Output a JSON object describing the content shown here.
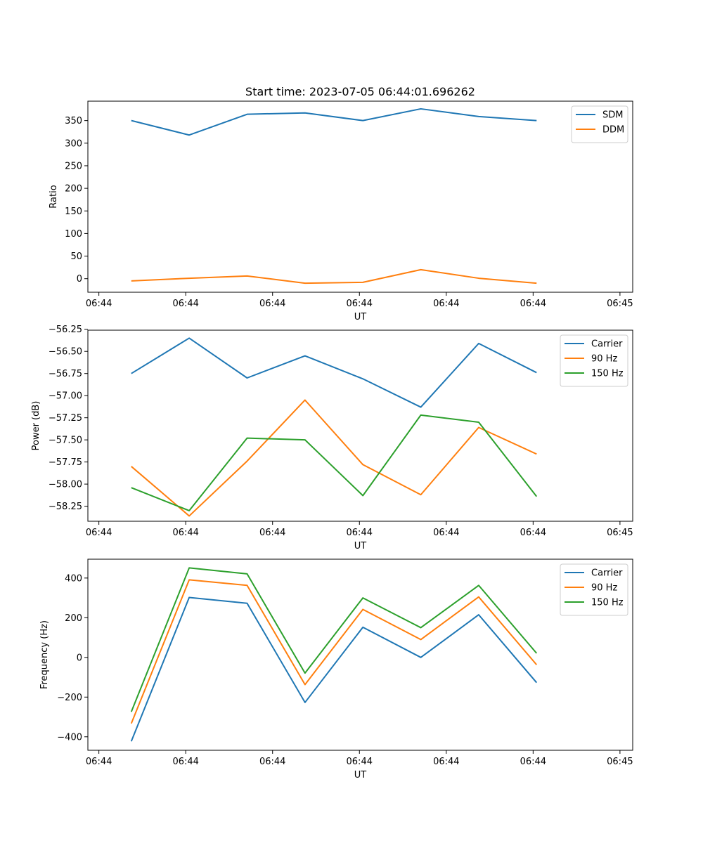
{
  "title": "Start time: 2023-07-05 06:44:01.696262",
  "chart_data": [
    {
      "type": "line",
      "xlabel": "UT",
      "ylabel": "Ratio",
      "x_tick_labels": [
        "06:44",
        "06:44",
        "06:44",
        "06:44",
        "06:44",
        "06:44",
        "06:45"
      ],
      "xlim": [
        -0.19,
        9.22
      ],
      "ylim": [
        -30,
        393
      ],
      "y_ticks": [
        0,
        50,
        100,
        150,
        200,
        250,
        300,
        350
      ],
      "y_tick_labels": [
        "0",
        "50",
        "100",
        "150",
        "200",
        "250",
        "300",
        "350"
      ],
      "legend": "top-right",
      "x": [
        0.56,
        1.56,
        2.56,
        3.56,
        4.56,
        5.56,
        6.56,
        7.56
      ],
      "series": [
        {
          "name": "SDM",
          "color": "#1f77b4",
          "values": [
            350,
            318,
            364,
            367,
            350,
            376,
            359,
            350
          ]
        },
        {
          "name": "DDM",
          "color": "#ff7f0e",
          "values": [
            -5,
            1,
            6,
            -10,
            -8,
            20,
            1,
            -10
          ]
        }
      ]
    },
    {
      "type": "line",
      "xlabel": "UT",
      "ylabel": "Power (dB)",
      "x_tick_labels": [
        "06:44",
        "06:44",
        "06:44",
        "06:44",
        "06:44",
        "06:44",
        "06:45"
      ],
      "xlim": [
        -0.19,
        9.22
      ],
      "ylim": [
        -58.42,
        -56.26
      ],
      "y_ticks": [
        -58.25,
        -58.0,
        -57.75,
        -57.5,
        -57.25,
        -57.0,
        -56.75,
        -56.5,
        -56.25
      ],
      "y_tick_labels": [
        "−58.25",
        "−58.00",
        "−57.75",
        "−57.50",
        "−57.25",
        "−57.00",
        "−56.75",
        "−56.50",
        "−56.25"
      ],
      "legend": "top-right",
      "x": [
        0.56,
        1.56,
        2.56,
        3.56,
        4.56,
        5.56,
        6.56,
        7.56
      ],
      "series": [
        {
          "name": "Carrier",
          "color": "#1f77b4",
          "values": [
            -56.75,
            -56.35,
            -56.8,
            -56.55,
            -56.81,
            -57.13,
            -56.41,
            -56.74
          ]
        },
        {
          "name": "90 Hz",
          "color": "#ff7f0e",
          "values": [
            -57.8,
            -58.36,
            -57.74,
            -57.05,
            -57.78,
            -58.12,
            -57.36,
            -57.66
          ]
        },
        {
          "name": "150 Hz",
          "color": "#2ca02c",
          "values": [
            -58.04,
            -58.3,
            -57.48,
            -57.5,
            -58.13,
            -57.22,
            -57.3,
            -58.14
          ]
        }
      ]
    },
    {
      "type": "line",
      "xlabel": "UT",
      "ylabel": "Frequency (Hz)",
      "x_tick_labels": [
        "06:44",
        "06:44",
        "06:44",
        "06:44",
        "06:44",
        "06:44",
        "06:45"
      ],
      "xlim": [
        -0.19,
        9.22
      ],
      "ylim": [
        -468,
        495
      ],
      "y_ticks": [
        -400,
        -200,
        0,
        200,
        400
      ],
      "y_tick_labels": [
        "−400",
        "−200",
        "0",
        "200",
        "400"
      ],
      "legend": "top-right",
      "x": [
        0.56,
        1.56,
        2.56,
        3.56,
        4.56,
        5.56,
        6.56,
        7.56
      ],
      "series": [
        {
          "name": "Carrier",
          "color": "#1f77b4",
          "values": [
            -423,
            302,
            273,
            -227,
            152,
            0,
            215,
            -127
          ]
        },
        {
          "name": "90 Hz",
          "color": "#ff7f0e",
          "values": [
            -333,
            391,
            363,
            -137,
            242,
            90,
            305,
            -37
          ]
        },
        {
          "name": "150 Hz",
          "color": "#2ca02c",
          "values": [
            -274,
            451,
            421,
            -79,
            300,
            150,
            363,
            21
          ]
        }
      ]
    }
  ]
}
